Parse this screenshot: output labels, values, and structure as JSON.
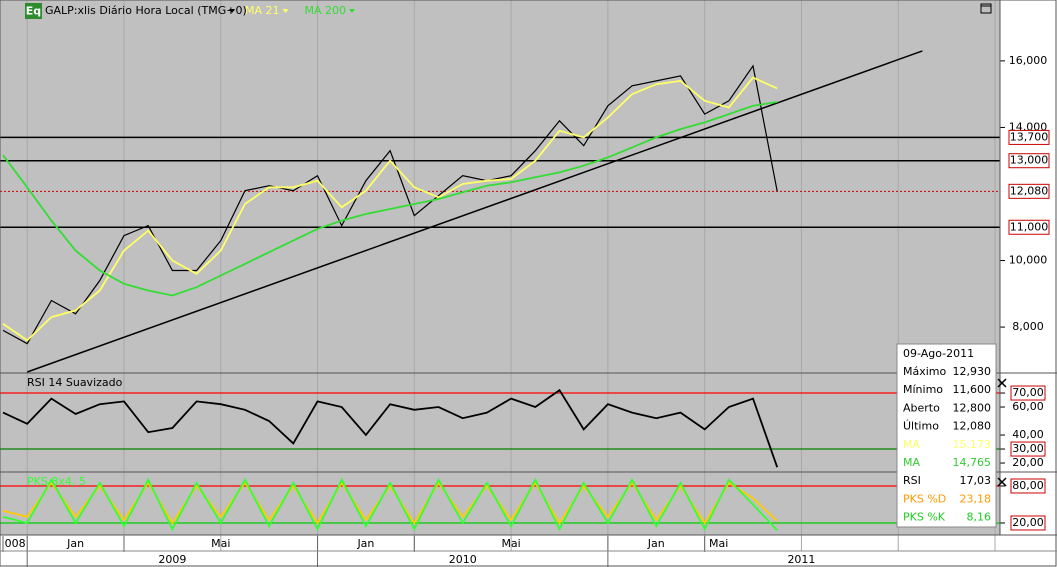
{
  "header": {
    "icon": "Eq",
    "symbol": "GALP:xlis Diário Hora Local (TMG+0)"
  },
  "time_axis": {
    "xlim": [
      "2008-12",
      "2012-05"
    ],
    "grid": [
      "2009-01",
      "2009-05",
      "2009-09",
      "2010-01",
      "2010-05",
      "2010-09",
      "2011-01",
      "2011-05",
      "2011-09",
      "2012-01",
      "2012-05"
    ],
    "month_labels": [
      {
        "value": "2008-12",
        "label": "008"
      },
      {
        "value": "2009-01",
        "label": "Jan"
      },
      {
        "value": "2009-05",
        "label": "Mai"
      },
      {
        "value": "2010-01",
        "label": "Jan"
      },
      {
        "value": "2010-05",
        "label": "Mai"
      },
      {
        "value": "2011-01",
        "label": "Jan"
      },
      {
        "value": "2011-05",
        "label": "Mai"
      }
    ],
    "year_labels": [
      {
        "value": "2009-01",
        "label": "2009"
      },
      {
        "value": "2010-01",
        "label": "2010"
      },
      {
        "value": "2011-01",
        "label": "2011"
      }
    ]
  },
  "chart_data": [
    {
      "type": "line",
      "x": [
        "2008-12",
        "2009-01",
        "2009-02",
        "2009-03",
        "2009-04",
        "2009-05",
        "2009-06",
        "2009-07",
        "2009-08",
        "2009-09",
        "2009-10",
        "2009-11",
        "2009-12",
        "2010-01",
        "2010-02",
        "2010-03",
        "2010-04",
        "2010-05",
        "2010-06",
        "2010-07",
        "2010-08",
        "2010-09",
        "2010-10",
        "2010-11",
        "2010-12",
        "2011-01",
        "2011-02",
        "2011-03",
        "2011-04",
        "2011-05",
        "2011-06",
        "2011-07",
        "2011-08"
      ],
      "series": [
        {
          "color": "#000000",
          "values": [
            7900,
            7500,
            8800,
            8400,
            9400,
            10750,
            11050,
            9700,
            9700,
            10600,
            12100,
            12250,
            12100,
            12550,
            11050,
            12400,
            13300,
            11350,
            11950,
            12550,
            12400,
            12550,
            13300,
            14200,
            13450,
            14650,
            15250,
            15400,
            15550,
            14400,
            14800,
            15850,
            12080
          ]
        },
        {
          "name": "MA 21",
          "color": "#ffff66",
          "values": [
            8100,
            7600,
            8300,
            8500,
            9100,
            10300,
            10900,
            10000,
            9600,
            10300,
            11700,
            12200,
            12200,
            12400,
            11600,
            12100,
            13000,
            12200,
            11900,
            12300,
            12400,
            12450,
            13000,
            13900,
            13700,
            14300,
            15000,
            15300,
            15400,
            14800,
            14600,
            15500,
            15173
          ]
        },
        {
          "name": "MA 200",
          "color": "#33dd33",
          "values": [
            13170,
            12200,
            11200,
            10300,
            9700,
            9300,
            9100,
            8950,
            9200,
            9550,
            9900,
            10250,
            10600,
            10950,
            11200,
            11400,
            11550,
            11700,
            11850,
            12050,
            12250,
            12350,
            12500,
            12650,
            12850,
            13100,
            13400,
            13700,
            13950,
            14150,
            14400,
            14650,
            14765
          ]
        }
      ],
      "ylim": [
        6620,
        17830
      ],
      "yticks": [
        {
          "value": 8000,
          "label": "8,000"
        },
        {
          "value": 10000,
          "label": "10,000"
        },
        {
          "value": 14000,
          "label": "14,000"
        },
        {
          "value": 16000,
          "label": "16,000"
        }
      ],
      "hlines": [
        {
          "value": 13700,
          "label": "13,700"
        },
        {
          "value": 13000,
          "label": "13,000"
        },
        {
          "value": 11000,
          "label": "11,000"
        }
      ],
      "last_price": {
        "value": 12080,
        "label": "12,080",
        "color": "#cc0000"
      },
      "trendline": {
        "x": [
          "2009-01",
          "2012-02"
        ],
        "values": [
          6650,
          16300
        ],
        "color": "#000000"
      },
      "grid": true
    },
    {
      "type": "line",
      "title": "RSI 14 Suavizado",
      "series": [
        {
          "color": "#000000",
          "values": [
            56,
            48,
            66,
            55,
            62,
            64,
            42,
            45,
            64,
            62,
            58,
            50,
            34,
            64,
            60,
            40,
            62,
            58,
            60,
            52,
            56,
            66,
            60,
            72,
            44,
            62,
            56,
            52,
            56,
            44,
            60,
            66,
            17
          ]
        }
      ],
      "ylim": [
        13.6,
        84.3
      ],
      "yticks": [
        {
          "value": 70,
          "label": "70,00"
        },
        {
          "value": 60,
          "label": "60,00"
        },
        {
          "value": 40,
          "label": "40,00"
        },
        {
          "value": 30,
          "label": "30,00"
        },
        {
          "value": 20,
          "label": "20,00"
        }
      ],
      "levels": [
        {
          "value": 70,
          "color": "#ff0000"
        },
        {
          "value": 30,
          "color": "#008000"
        }
      ],
      "grid": true
    },
    {
      "type": "line",
      "title": "PKS 8x4, 5",
      "series": [
        {
          "color": "#ffcc00",
          "values": [
            40,
            30,
            85,
            30,
            80,
            25,
            85,
            20,
            80,
            30,
            85,
            25,
            80,
            20,
            85,
            25,
            80,
            20,
            85,
            30,
            80,
            25,
            85,
            20,
            80,
            30,
            85,
            25,
            80,
            20,
            85,
            60,
            23.18
          ]
        },
        {
          "color": "#33ff33",
          "values": [
            30,
            20,
            90,
            20,
            85,
            15,
            90,
            10,
            85,
            20,
            90,
            15,
            85,
            10,
            90,
            15,
            85,
            10,
            90,
            20,
            85,
            15,
            90,
            10,
            85,
            20,
            90,
            15,
            85,
            10,
            90,
            50,
            8.16
          ]
        }
      ],
      "ylim": [
        0.5,
        102.7
      ],
      "yticks": [
        {
          "value": 80,
          "label": "80,00"
        },
        {
          "value": 20,
          "label": "20,00"
        }
      ],
      "levels": [
        {
          "value": 80,
          "color": "#ff0000"
        },
        {
          "value": 20,
          "color": "#00cc00"
        }
      ],
      "grid": true
    }
  ],
  "info_box": {
    "date": "09-Ago-2011",
    "rows": [
      {
        "label": "Máximo",
        "value": "12,930",
        "color": "#000000"
      },
      {
        "label": "Mínimo",
        "value": "11,600",
        "color": "#000000"
      },
      {
        "label": "Aberto",
        "value": "12,800",
        "color": "#000000"
      },
      {
        "label": "Último",
        "value": "12,080",
        "color": "#000000"
      },
      {
        "label": "MA",
        "value": "15,173",
        "color": "#ffff66"
      },
      {
        "label": "MA",
        "value": "14,765",
        "color": "#33cc33"
      },
      {
        "label": "RSI",
        "value": "17,03",
        "color": "#000000"
      },
      {
        "label": "PKS %D",
        "value": "23,18",
        "color": "#ff9900"
      },
      {
        "label": "PKS %K",
        "value": "8,16",
        "color": "#22cc22"
      }
    ]
  }
}
